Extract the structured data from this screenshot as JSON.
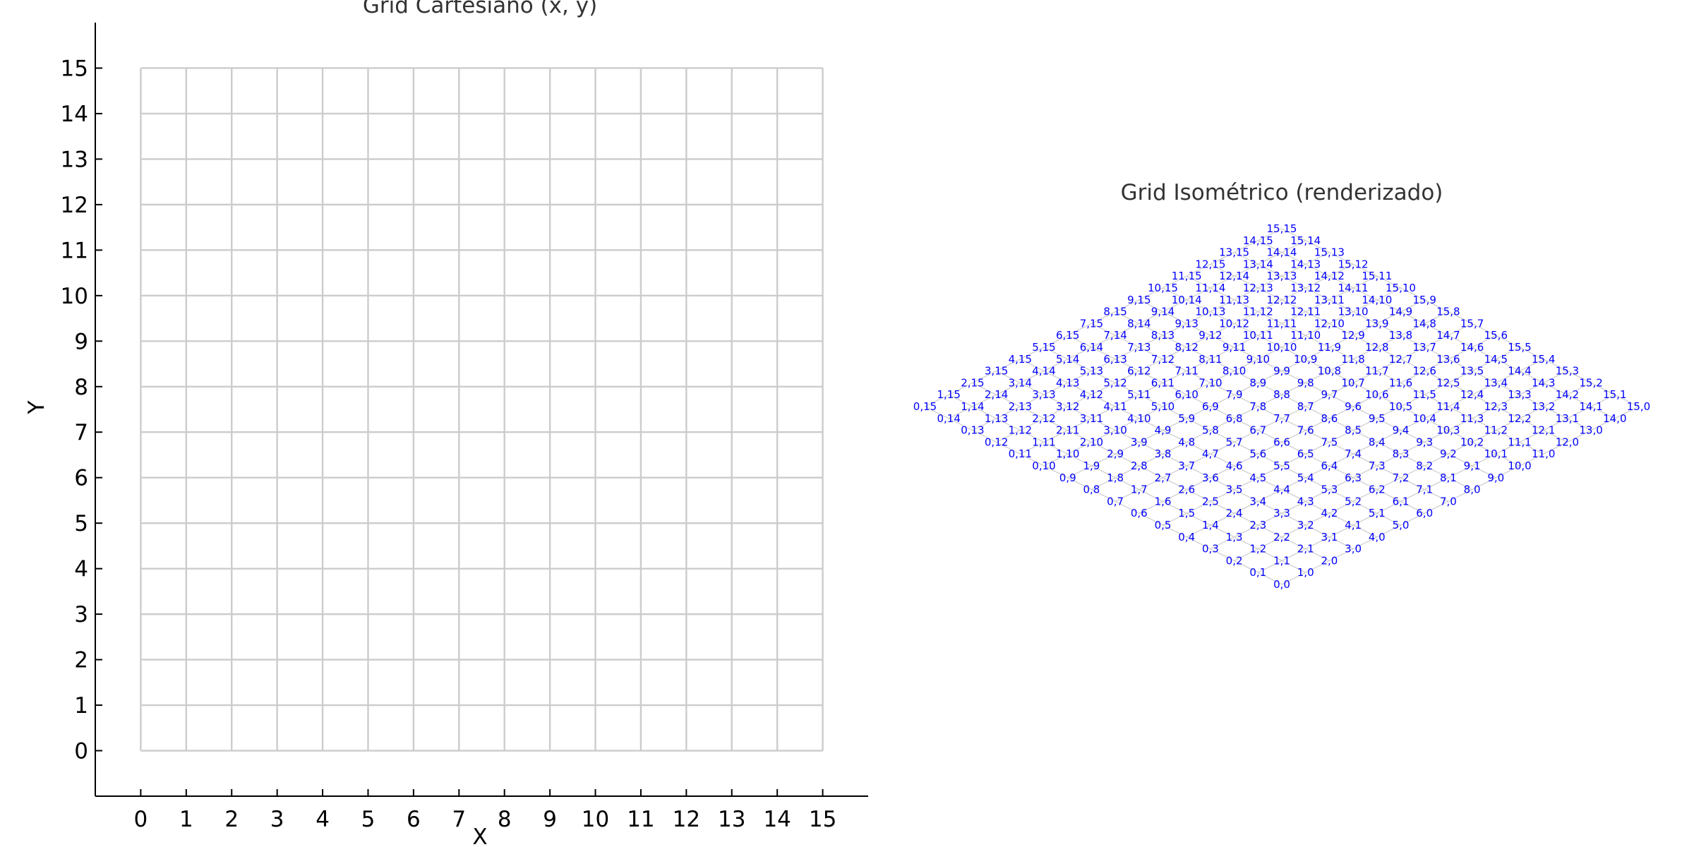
{
  "chart_data": [
    {
      "type": "grid",
      "title": "Grid Cartesiano (x, y)",
      "xlabel": "X",
      "ylabel": "Y",
      "xlim": [
        -1,
        16
      ],
      "ylim": [
        -1,
        16
      ],
      "x_ticks": [
        0,
        1,
        2,
        3,
        4,
        5,
        6,
        7,
        8,
        9,
        10,
        11,
        12,
        13,
        14,
        15
      ],
      "y_ticks": [
        0,
        1,
        2,
        3,
        4,
        5,
        6,
        7,
        8,
        9,
        10,
        11,
        12,
        13,
        14,
        15
      ],
      "grid_range": [
        0,
        15
      ],
      "grid": true,
      "grid_color": "#cccccc",
      "axis_color": "#000000",
      "title_color": "#333333"
    },
    {
      "type": "isometric-grid",
      "title": "Grid Isométrico (renderizado)",
      "grid_range": [
        0,
        15
      ],
      "label_format": "x,y",
      "label_color": "#0000ff",
      "line_color": "#cccccc",
      "title_color": "#333333"
    }
  ]
}
